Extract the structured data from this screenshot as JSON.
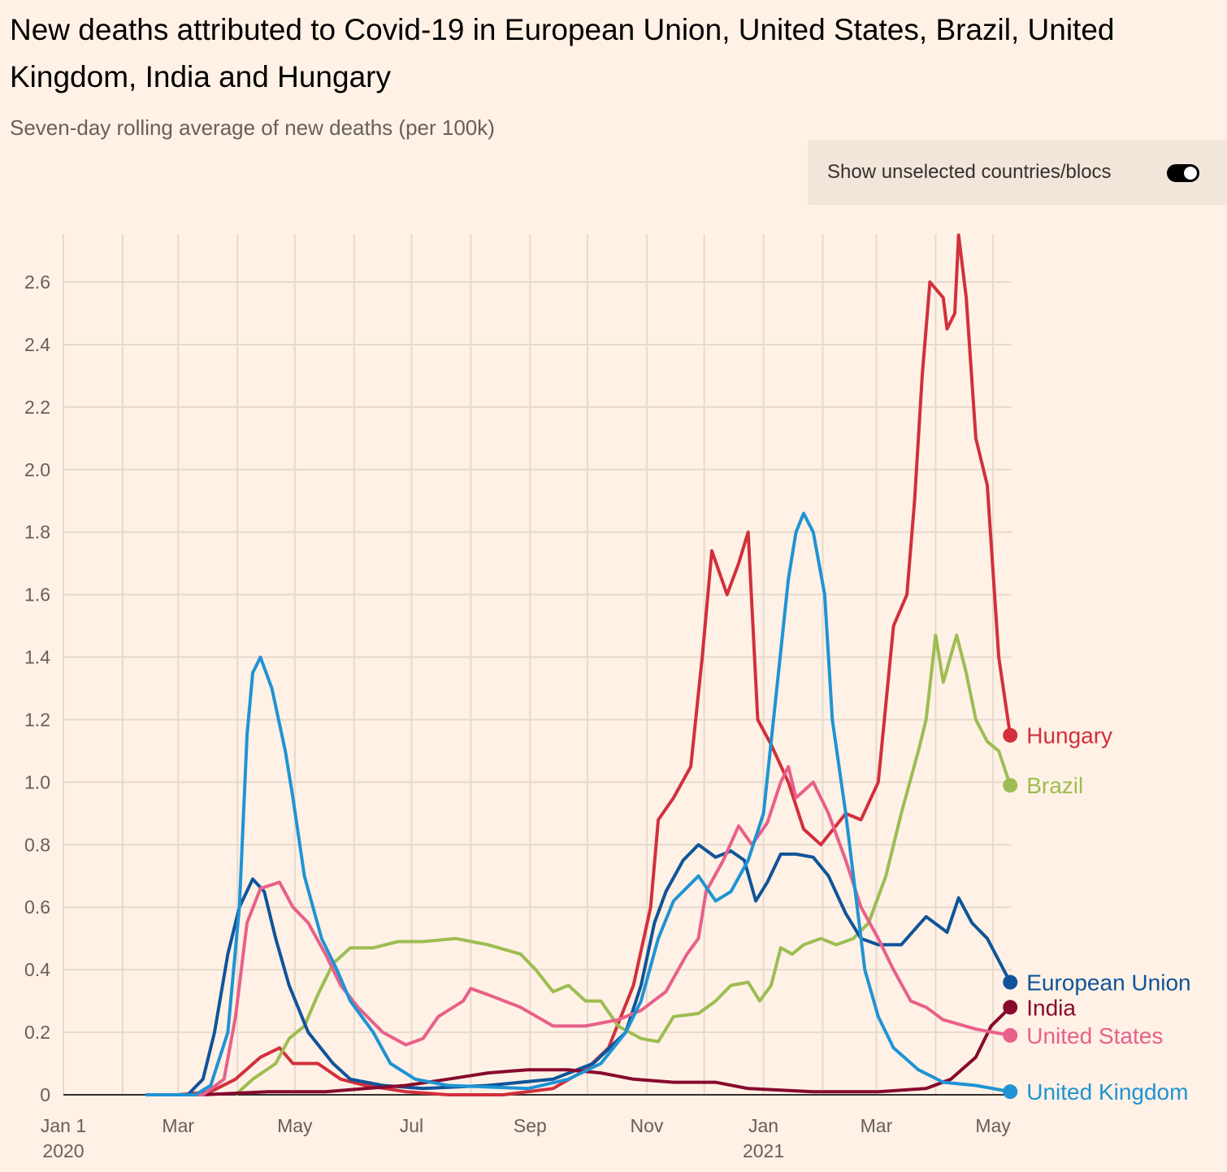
{
  "chart_data": {
    "type": "line",
    "title": "New deaths attributed to Covid-19 in European Union, United States, Brazil, United Kingdom, India and Hungary",
    "subtitle": "Seven-day rolling average of new deaths (per 100k)",
    "x_unit": "days since 2020-01-01",
    "xlim": [
      0,
      497
    ],
    "ylim": [
      0,
      2.75
    ],
    "grid": true,
    "y_ticks": [
      "0",
      "0.2",
      "0.4",
      "0.6",
      "0.8",
      "1.0",
      "1.2",
      "1.4",
      "1.6",
      "1.8",
      "2.0",
      "2.2",
      "2.4",
      "2.6"
    ],
    "y_tick_values": [
      0,
      0.2,
      0.4,
      0.6,
      0.8,
      1.0,
      1.2,
      1.4,
      1.6,
      1.8,
      2.0,
      2.2,
      2.4,
      2.6
    ],
    "x_ticks": [
      {
        "day": 0,
        "label": "Jan 1",
        "sub": "2020"
      },
      {
        "day": 60,
        "label": "Mar",
        "sub": ""
      },
      {
        "day": 121,
        "label": "May",
        "sub": ""
      },
      {
        "day": 182,
        "label": "Jul",
        "sub": ""
      },
      {
        "day": 244,
        "label": "Sep",
        "sub": ""
      },
      {
        "day": 305,
        "label": "Nov",
        "sub": ""
      },
      {
        "day": 366,
        "label": "Jan",
        "sub": "2021"
      },
      {
        "day": 425,
        "label": "Mar",
        "sub": ""
      },
      {
        "day": 486,
        "label": "May",
        "sub": ""
      }
    ],
    "x_grid_days": [
      0,
      31,
      60,
      91,
      121,
      152,
      182,
      213,
      244,
      274,
      305,
      335,
      366,
      397,
      425,
      456,
      486
    ],
    "series": [
      {
        "name": "Hungary",
        "color": "#d1303c",
        "points": [
          [
            43,
            0
          ],
          [
            60,
            0
          ],
          [
            77,
            0.01
          ],
          [
            90,
            0.05
          ],
          [
            103,
            0.12
          ],
          [
            113,
            0.15
          ],
          [
            120,
            0.1
          ],
          [
            133,
            0.1
          ],
          [
            145,
            0.05
          ],
          [
            158,
            0.03
          ],
          [
            179,
            0.01
          ],
          [
            201,
            0
          ],
          [
            230,
            0
          ],
          [
            256,
            0.02
          ],
          [
            273,
            0.08
          ],
          [
            285,
            0.15
          ],
          [
            298,
            0.35
          ],
          [
            307,
            0.6
          ],
          [
            311,
            0.88
          ],
          [
            319,
            0.95
          ],
          [
            328,
            1.05
          ],
          [
            334,
            1.4
          ],
          [
            339,
            1.74
          ],
          [
            347,
            1.6
          ],
          [
            353,
            1.7
          ],
          [
            358,
            1.8
          ],
          [
            363,
            1.2
          ],
          [
            370,
            1.12
          ],
          [
            379,
            1.0
          ],
          [
            387,
            0.85
          ],
          [
            396,
            0.8
          ],
          [
            409,
            0.9
          ],
          [
            417,
            0.88
          ],
          [
            426,
            1.0
          ],
          [
            434,
            1.5
          ],
          [
            441,
            1.6
          ],
          [
            445,
            1.9
          ],
          [
            449,
            2.3
          ],
          [
            453,
            2.6
          ],
          [
            460,
            2.55
          ],
          [
            462,
            2.45
          ],
          [
            466,
            2.5
          ],
          [
            468,
            2.75
          ],
          [
            472,
            2.55
          ],
          [
            477,
            2.1
          ],
          [
            483,
            1.95
          ],
          [
            489,
            1.4
          ],
          [
            495,
            1.15
          ]
        ]
      },
      {
        "name": "Brazil",
        "color": "#9dbd52",
        "points": [
          [
            90,
            0
          ],
          [
            99,
            0.05
          ],
          [
            111,
            0.1
          ],
          [
            118,
            0.18
          ],
          [
            126,
            0.22
          ],
          [
            133,
            0.32
          ],
          [
            141,
            0.42
          ],
          [
            150,
            0.47
          ],
          [
            162,
            0.47
          ],
          [
            175,
            0.49
          ],
          [
            188,
            0.49
          ],
          [
            205,
            0.5
          ],
          [
            222,
            0.48
          ],
          [
            239,
            0.45
          ],
          [
            247,
            0.4
          ],
          [
            256,
            0.33
          ],
          [
            264,
            0.35
          ],
          [
            273,
            0.3
          ],
          [
            281,
            0.3
          ],
          [
            290,
            0.22
          ],
          [
            302,
            0.18
          ],
          [
            311,
            0.17
          ],
          [
            319,
            0.25
          ],
          [
            332,
            0.26
          ],
          [
            341,
            0.3
          ],
          [
            349,
            0.35
          ],
          [
            358,
            0.36
          ],
          [
            364,
            0.3
          ],
          [
            370,
            0.35
          ],
          [
            375,
            0.47
          ],
          [
            381,
            0.45
          ],
          [
            387,
            0.48
          ],
          [
            396,
            0.5
          ],
          [
            404,
            0.48
          ],
          [
            413,
            0.5
          ],
          [
            421,
            0.55
          ],
          [
            430,
            0.7
          ],
          [
            438,
            0.9
          ],
          [
            447,
            1.1
          ],
          [
            451,
            1.2
          ],
          [
            456,
            1.47
          ],
          [
            460,
            1.32
          ],
          [
            467,
            1.47
          ],
          [
            472,
            1.35
          ],
          [
            477,
            1.2
          ],
          [
            483,
            1.13
          ],
          [
            489,
            1.1
          ],
          [
            495,
            0.99
          ]
        ]
      },
      {
        "name": "European Union",
        "color": "#0f5499",
        "points": [
          [
            43,
            0
          ],
          [
            65,
            0
          ],
          [
            73,
            0.05
          ],
          [
            79,
            0.2
          ],
          [
            86,
            0.45
          ],
          [
            92,
            0.6
          ],
          [
            99,
            0.69
          ],
          [
            105,
            0.65
          ],
          [
            111,
            0.5
          ],
          [
            118,
            0.35
          ],
          [
            128,
            0.2
          ],
          [
            141,
            0.1
          ],
          [
            150,
            0.05
          ],
          [
            167,
            0.03
          ],
          [
            188,
            0.02
          ],
          [
            222,
            0.03
          ],
          [
            256,
            0.05
          ],
          [
            277,
            0.1
          ],
          [
            294,
            0.2
          ],
          [
            302,
            0.35
          ],
          [
            309,
            0.55
          ],
          [
            315,
            0.65
          ],
          [
            324,
            0.75
          ],
          [
            332,
            0.8
          ],
          [
            341,
            0.76
          ],
          [
            349,
            0.78
          ],
          [
            356,
            0.75
          ],
          [
            362,
            0.62
          ],
          [
            368,
            0.68
          ],
          [
            375,
            0.77
          ],
          [
            383,
            0.77
          ],
          [
            392,
            0.76
          ],
          [
            400,
            0.7
          ],
          [
            409,
            0.58
          ],
          [
            417,
            0.5
          ],
          [
            426,
            0.48
          ],
          [
            438,
            0.48
          ],
          [
            451,
            0.57
          ],
          [
            462,
            0.52
          ],
          [
            468,
            0.63
          ],
          [
            475,
            0.55
          ],
          [
            483,
            0.5
          ],
          [
            495,
            0.36
          ]
        ]
      },
      {
        "name": "India",
        "color": "#870a2d",
        "points": [
          [
            43,
            0
          ],
          [
            73,
            0
          ],
          [
            107,
            0.01
          ],
          [
            137,
            0.01
          ],
          [
            158,
            0.02
          ],
          [
            179,
            0.03
          ],
          [
            201,
            0.05
          ],
          [
            222,
            0.07
          ],
          [
            243,
            0.08
          ],
          [
            264,
            0.08
          ],
          [
            281,
            0.07
          ],
          [
            298,
            0.05
          ],
          [
            319,
            0.04
          ],
          [
            341,
            0.04
          ],
          [
            358,
            0.02
          ],
          [
            392,
            0.01
          ],
          [
            426,
            0.01
          ],
          [
            451,
            0.02
          ],
          [
            464,
            0.05
          ],
          [
            477,
            0.12
          ],
          [
            485,
            0.22
          ],
          [
            495,
            0.28
          ]
        ]
      },
      {
        "name": "United States",
        "color": "#e8608a",
        "points": [
          [
            43,
            0
          ],
          [
            73,
            0
          ],
          [
            84,
            0.05
          ],
          [
            90,
            0.25
          ],
          [
            96,
            0.55
          ],
          [
            103,
            0.66
          ],
          [
            113,
            0.68
          ],
          [
            120,
            0.6
          ],
          [
            128,
            0.55
          ],
          [
            137,
            0.45
          ],
          [
            145,
            0.35
          ],
          [
            154,
            0.28
          ],
          [
            167,
            0.2
          ],
          [
            179,
            0.16
          ],
          [
            188,
            0.18
          ],
          [
            196,
            0.25
          ],
          [
            209,
            0.3
          ],
          [
            213,
            0.34
          ],
          [
            222,
            0.32
          ],
          [
            239,
            0.28
          ],
          [
            256,
            0.22
          ],
          [
            273,
            0.22
          ],
          [
            290,
            0.24
          ],
          [
            302,
            0.27
          ],
          [
            315,
            0.33
          ],
          [
            326,
            0.45
          ],
          [
            332,
            0.5
          ],
          [
            336,
            0.65
          ],
          [
            345,
            0.75
          ],
          [
            353,
            0.86
          ],
          [
            360,
            0.8
          ],
          [
            368,
            0.87
          ],
          [
            375,
            1.0
          ],
          [
            379,
            1.05
          ],
          [
            383,
            0.95
          ],
          [
            392,
            1.0
          ],
          [
            400,
            0.9
          ],
          [
            409,
            0.75
          ],
          [
            417,
            0.6
          ],
          [
            426,
            0.5
          ],
          [
            434,
            0.4
          ],
          [
            443,
            0.3
          ],
          [
            451,
            0.28
          ],
          [
            460,
            0.24
          ],
          [
            477,
            0.21
          ],
          [
            495,
            0.19
          ]
        ]
      },
      {
        "name": "United Kingdom",
        "color": "#1f93d4",
        "points": [
          [
            43,
            0
          ],
          [
            69,
            0
          ],
          [
            77,
            0.03
          ],
          [
            86,
            0.2
          ],
          [
            92,
            0.6
          ],
          [
            96,
            1.15
          ],
          [
            99,
            1.35
          ],
          [
            103,
            1.4
          ],
          [
            109,
            1.3
          ],
          [
            116,
            1.1
          ],
          [
            120,
            0.95
          ],
          [
            126,
            0.7
          ],
          [
            135,
            0.5
          ],
          [
            143,
            0.4
          ],
          [
            150,
            0.3
          ],
          [
            162,
            0.2
          ],
          [
            171,
            0.1
          ],
          [
            184,
            0.05
          ],
          [
            201,
            0.03
          ],
          [
            243,
            0.02
          ],
          [
            264,
            0.05
          ],
          [
            281,
            0.1
          ],
          [
            294,
            0.2
          ],
          [
            302,
            0.3
          ],
          [
            311,
            0.5
          ],
          [
            319,
            0.62
          ],
          [
            332,
            0.7
          ],
          [
            341,
            0.62
          ],
          [
            349,
            0.65
          ],
          [
            358,
            0.75
          ],
          [
            366,
            0.9
          ],
          [
            373,
            1.3
          ],
          [
            379,
            1.65
          ],
          [
            383,
            1.8
          ],
          [
            387,
            1.86
          ],
          [
            392,
            1.8
          ],
          [
            398,
            1.6
          ],
          [
            402,
            1.2
          ],
          [
            409,
            0.9
          ],
          [
            413,
            0.7
          ],
          [
            419,
            0.4
          ],
          [
            426,
            0.25
          ],
          [
            434,
            0.15
          ],
          [
            447,
            0.08
          ],
          [
            460,
            0.04
          ],
          [
            477,
            0.03
          ],
          [
            495,
            0.01
          ]
        ]
      }
    ],
    "legend": "end-of-line labels, right"
  },
  "toggle": {
    "label": "Show unselected countries/blocs",
    "on": true
  }
}
